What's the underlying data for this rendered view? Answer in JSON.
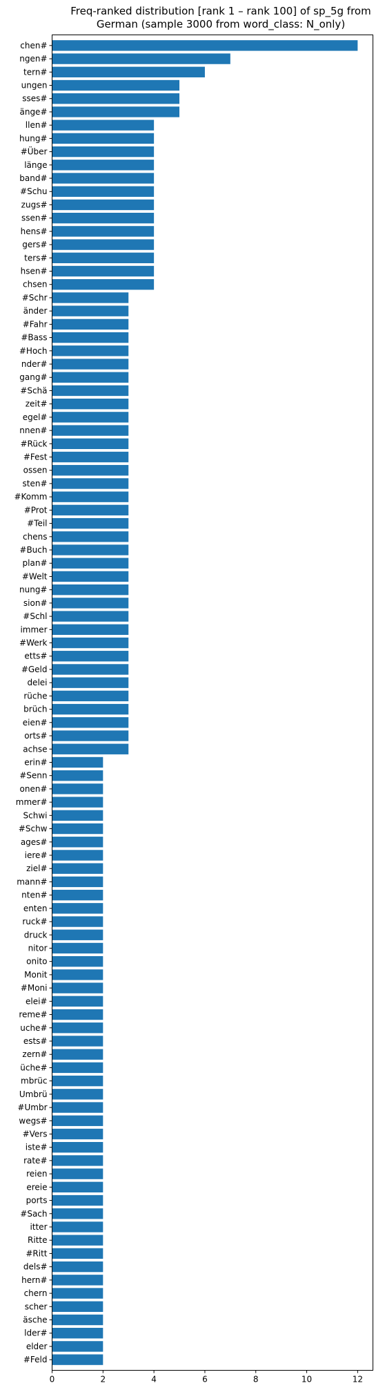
{
  "chart_data": {
    "type": "bar",
    "orientation": "horizontal",
    "title": "Freq-ranked distribution [rank 1 – rank 100] of sp_5g from German (sample 3000 from word_class: N_only)",
    "title_lines": [
      "Freq-ranked distribution [rank 1 – rank 100] of sp_5g from",
      "German (sample 3000 from word_class: N_only)"
    ],
    "xlabel": "",
    "ylabel": "",
    "xlim": [
      0,
      12.6
    ],
    "xticks": [
      0,
      2,
      4,
      6,
      8,
      10,
      12
    ],
    "grid": false,
    "bar_color": "#1f77b4",
    "categories": [
      "chen#",
      "ngen#",
      "tern#",
      "ungen",
      "sses#",
      "änge#",
      "llen#",
      "hung#",
      "#Über",
      "länge",
      "band#",
      "#Schu",
      "zugs#",
      "ssen#",
      "hens#",
      "gers#",
      "ters#",
      "hsen#",
      "chsen",
      "#Schr",
      "änder",
      "#Fahr",
      "#Bass",
      "#Hoch",
      "nder#",
      "gang#",
      "#Schä",
      "zeit#",
      "egel#",
      "nnen#",
      "#Rück",
      "#Fest",
      "ossen",
      "sten#",
      "#Komm",
      "#Prot",
      "#Teil",
      "chens",
      "#Buch",
      "plan#",
      "#Welt",
      "nung#",
      "sion#",
      "#Schl",
      "immer",
      "#Werk",
      "etts#",
      "#Geld",
      "delei",
      "rüche",
      "brüch",
      "eien#",
      "orts#",
      "achse",
      "erin#",
      "#Senn",
      "onen#",
      "mmer#",
      "Schwi",
      "#Schw",
      "ages#",
      "iere#",
      "ziel#",
      "mann#",
      "nten#",
      "enten",
      "ruck#",
      "druck",
      "nitor",
      "onito",
      "Monit",
      "#Moni",
      "elei#",
      "reme#",
      "uche#",
      "ests#",
      "zern#",
      "üche#",
      "mbrüc",
      "Umbrü",
      "#Umbr",
      "wegs#",
      "#Vers",
      "iste#",
      "rate#",
      "reien",
      "ereie",
      "ports",
      "#Sach",
      "itter",
      "Ritte",
      "#Ritt",
      "dels#",
      "hern#",
      "chern",
      "scher",
      "äsche",
      "lder#",
      "elder",
      "#Feld"
    ],
    "values": [
      12,
      7,
      6,
      5,
      5,
      5,
      4,
      4,
      4,
      4,
      4,
      4,
      4,
      4,
      4,
      4,
      4,
      4,
      4,
      3,
      3,
      3,
      3,
      3,
      3,
      3,
      3,
      3,
      3,
      3,
      3,
      3,
      3,
      3,
      3,
      3,
      3,
      3,
      3,
      3,
      3,
      3,
      3,
      3,
      3,
      3,
      3,
      3,
      3,
      3,
      3,
      3,
      3,
      3,
      2,
      2,
      2,
      2,
      2,
      2,
      2,
      2,
      2,
      2,
      2,
      2,
      2,
      2,
      2,
      2,
      2,
      2,
      2,
      2,
      2,
      2,
      2,
      2,
      2,
      2,
      2,
      2,
      2,
      2,
      2,
      2,
      2,
      2,
      2,
      2,
      2,
      2,
      2,
      2,
      2,
      2,
      2,
      2,
      2,
      2
    ]
  }
}
